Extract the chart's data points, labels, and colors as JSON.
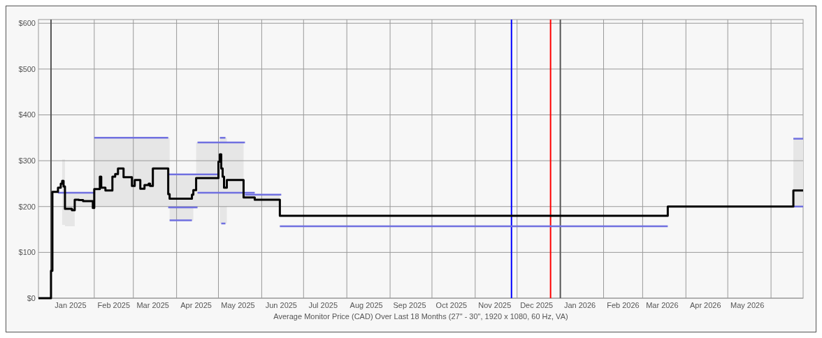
{
  "chart_data": {
    "type": "step",
    "xlabel": "Average Monitor Price (CAD) Over Last 18 Months (27\" - 30\", 1920 x 1080, 60 Hz, VA)",
    "xlim": [
      "2024-12-23",
      "2026-06-24"
    ],
    "xticks": [
      {
        "value": "2025-01-01",
        "label": null
      },
      {
        "value": "2025-01-15",
        "label": "Jan 2025"
      },
      {
        "value": "2025-02-01",
        "label": null
      },
      {
        "value": "2025-02-15",
        "label": "Feb 2025"
      },
      {
        "value": "2025-03-01",
        "label": null
      },
      {
        "value": "2025-03-15",
        "label": "Mar 2025"
      },
      {
        "value": "2025-04-01",
        "label": null
      },
      {
        "value": "2025-04-15",
        "label": "Apr 2025"
      },
      {
        "value": "2025-05-01",
        "label": null
      },
      {
        "value": "2025-05-15",
        "label": "May 2025"
      },
      {
        "value": "2025-06-01",
        "label": null
      },
      {
        "value": "2025-06-15",
        "label": "Jun 2025"
      },
      {
        "value": "2025-07-01",
        "label": null
      },
      {
        "value": "2025-07-15",
        "label": "Jul 2025"
      },
      {
        "value": "2025-08-01",
        "label": null
      },
      {
        "value": "2025-08-15",
        "label": "Aug 2025"
      },
      {
        "value": "2025-09-01",
        "label": null
      },
      {
        "value": "2025-09-15",
        "label": "Sep 2025"
      },
      {
        "value": "2025-10-01",
        "label": null
      },
      {
        "value": "2025-10-15",
        "label": "Oct 2025"
      },
      {
        "value": "2025-11-01",
        "label": null
      },
      {
        "value": "2025-11-15",
        "label": "Nov 2025"
      },
      {
        "value": "2025-12-01",
        "label": null
      },
      {
        "value": "2025-12-15",
        "label": "Dec 2025"
      },
      {
        "value": "2026-01-01",
        "label": null
      },
      {
        "value": "2026-01-15",
        "label": "Jan 2026"
      },
      {
        "value": "2026-02-01",
        "label": null
      },
      {
        "value": "2026-02-15",
        "label": "Feb 2026"
      },
      {
        "value": "2026-03-01",
        "label": null
      },
      {
        "value": "2026-03-15",
        "label": "Mar 2026"
      },
      {
        "value": "2026-04-01",
        "label": null
      },
      {
        "value": "2026-04-15",
        "label": "Apr 2026"
      },
      {
        "value": "2026-05-01",
        "label": null
      },
      {
        "value": "2026-05-15",
        "label": "May 2026"
      },
      {
        "value": "2026-06-01",
        "label": null
      }
    ],
    "ylim": [
      0,
      608
    ],
    "yticks": [
      {
        "value": 0,
        "label": "$0"
      },
      {
        "value": 100,
        "label": "$100"
      },
      {
        "value": 200,
        "label": "$200"
      },
      {
        "value": 300,
        "label": "$300"
      },
      {
        "value": 400,
        "label": "$400"
      },
      {
        "value": 500,
        "label": "$500"
      },
      {
        "value": 600,
        "label": "$600"
      }
    ],
    "grid": true,
    "ref_lines": [
      {
        "axis": "x",
        "value": "2025-01-01",
        "color": "#555555"
      },
      {
        "axis": "x",
        "value": "2025-11-27",
        "color": "#0000ff"
      },
      {
        "axis": "x",
        "value": "2025-12-25",
        "color": "#ff0000"
      },
      {
        "axis": "x",
        "value": "2026-01-01",
        "color": "#555555"
      }
    ],
    "series": [
      {
        "type": "line",
        "color": "#7070e0",
        "x": [
          "2025-01-06",
          "2025-02-01"
        ],
        "values": [
          230,
          230
        ]
      },
      {
        "type": "line",
        "color": "#7070e0",
        "x": [
          "2025-02-01",
          "2025-03-26"
        ],
        "values": [
          350,
          350
        ]
      },
      {
        "type": "line",
        "color": "#7070e0",
        "x": [
          "2025-03-26",
          "2025-05-01"
        ],
        "values": [
          270,
          270
        ]
      },
      {
        "type": "line",
        "color": "#7070e0",
        "x": [
          "2025-03-26",
          "2025-04-16"
        ],
        "values": [
          198,
          198
        ]
      },
      {
        "type": "line",
        "color": "#7070e0",
        "x": [
          "2025-03-27",
          "2025-04-12"
        ],
        "values": [
          170,
          170
        ]
      },
      {
        "type": "line",
        "color": "#7070e0",
        "x": [
          "2025-04-16",
          "2025-05-20"
        ],
        "values": [
          340,
          340
        ]
      },
      {
        "type": "line",
        "color": "#7070e0",
        "x": [
          "2025-05-02",
          "2025-05-06"
        ],
        "values": [
          350,
          350
        ]
      },
      {
        "type": "line",
        "color": "#7070e0",
        "x": [
          "2025-04-16",
          "2025-05-27"
        ],
        "values": [
          230,
          230
        ]
      },
      {
        "type": "line",
        "color": "#7070e0",
        "x": [
          "2025-05-03",
          "2025-05-06"
        ],
        "values": [
          163,
          163
        ]
      },
      {
        "type": "line",
        "color": "#7070e0",
        "x": [
          "2025-05-20",
          "2025-06-15"
        ],
        "values": [
          226,
          226
        ]
      },
      {
        "type": "line",
        "color": "#7070e0",
        "x": [
          "2025-06-14",
          "2026-03-19"
        ],
        "values": [
          157,
          157
        ]
      },
      {
        "type": "line",
        "color": "#7070e0",
        "x": [
          "2026-06-17",
          "2026-06-24"
        ],
        "values": [
          348,
          348
        ]
      },
      {
        "type": "line",
        "color": "#7070e0",
        "x": [
          "2026-06-17",
          "2026-06-24"
        ],
        "values": [
          200,
          200
        ]
      },
      {
        "color": "#000000",
        "x": [
          "2024-12-23",
          "2025-01-01",
          "2025-01-02",
          "2025-01-06",
          "2025-01-08",
          "2025-01-09",
          "2025-01-10",
          "2025-01-11",
          "2025-01-16",
          "2025-01-18",
          "2025-01-21",
          "2025-01-24",
          "2025-01-30",
          "2025-01-31",
          "2025-02-01",
          "2025-02-05",
          "2025-02-06",
          "2025-02-09",
          "2025-02-14",
          "2025-02-16",
          "2025-02-18",
          "2025-02-22",
          "2025-02-28",
          "2025-03-02",
          "2025-03-06",
          "2025-03-09",
          "2025-03-12",
          "2025-03-13",
          "2025-03-15",
          "2025-03-26",
          "2025-03-27",
          "2025-04-12",
          "2025-04-13",
          "2025-04-15",
          "2025-05-01",
          "2025-05-02",
          "2025-05-03",
          "2025-05-04",
          "2025-05-05",
          "2025-05-07",
          "2025-05-19",
          "2025-05-27",
          "2025-06-14",
          "2026-03-19",
          "2026-06-17",
          "2026-06-24"
        ],
        "values": [
          0,
          60,
          232,
          241,
          250,
          256,
          244,
          195,
          192,
          215,
          214,
          212,
          212,
          197,
          238,
          265,
          241,
          235,
          265,
          271,
          283,
          264,
          245,
          258,
          239,
          247,
          250,
          245,
          283,
          227,
          217,
          226,
          236,
          262,
          298,
          314,
          283,
          265,
          241,
          258,
          220,
          215,
          180,
          200,
          235,
          235
        ],
        "lower": [
          null,
          null,
          null,
          null,
          null,
          160,
          160,
          157,
          157,
          200,
          200,
          200,
          195,
          195,
          200,
          200,
          200,
          200,
          200,
          200,
          200,
          200,
          200,
          200,
          200,
          200,
          200,
          200,
          200,
          200,
          170,
          170,
          200,
          200,
          200,
          163,
          163,
          163,
          163,
          200,
          200,
          200,
          157,
          null,
          200,
          200
        ],
        "upper": [
          null,
          null,
          null,
          null,
          null,
          303,
          303,
          230,
          230,
          230,
          230,
          230,
          230,
          230,
          350,
          350,
          350,
          350,
          350,
          350,
          350,
          350,
          350,
          350,
          350,
          350,
          350,
          350,
          350,
          350,
          268,
          268,
          268,
          340,
          340,
          350,
          350,
          350,
          350,
          340,
          226,
          226,
          200,
          null,
          348,
          348
        ]
      }
    ]
  }
}
